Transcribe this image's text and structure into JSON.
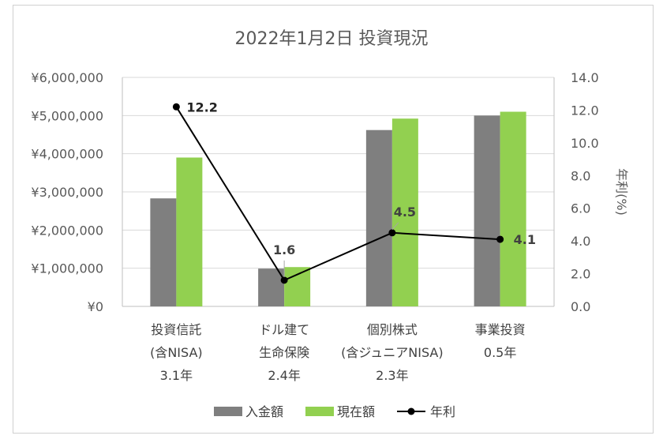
{
  "chart_data": {
    "type": "bar+line",
    "title": "2022年1月2日 投資現況",
    "categories": [
      [
        "投資信託",
        "(含NISA)",
        "3.1年"
      ],
      [
        "ドル建て",
        "生命保険",
        "2.4年"
      ],
      [
        "個別株式",
        "(含ジュニアNISA)",
        "2.3年"
      ],
      [
        "事業投資",
        "0.5年"
      ]
    ],
    "series": [
      {
        "name": "入金額",
        "type": "bar",
        "axis": "left",
        "color": "#7f7f7f",
        "values": [
          2830000,
          990000,
          4620000,
          5000000
        ]
      },
      {
        "name": "現在額",
        "type": "bar",
        "axis": "left",
        "color": "#92d050",
        "values": [
          3900000,
          1030000,
          4920000,
          5100000
        ]
      },
      {
        "name": "年利",
        "type": "line",
        "axis": "right",
        "color": "#000000",
        "values": [
          12.2,
          1.6,
          4.5,
          4.1
        ],
        "labels": [
          "12.2",
          "1.6",
          "4.5",
          "4.1"
        ]
      }
    ],
    "yaxis_left": {
      "min": 0,
      "max": 6000000,
      "step": 1000000,
      "ticks": [
        "¥0",
        "¥1,000,000",
        "¥2,000,000",
        "¥3,000,000",
        "¥4,000,000",
        "¥5,000,000",
        "¥6,000,000"
      ]
    },
    "yaxis_right": {
      "min": 0,
      "max": 14,
      "step": 2,
      "label": "年利(%)",
      "ticks": [
        "0.0",
        "2.0",
        "4.0",
        "6.0",
        "8.0",
        "10.0",
        "12.0",
        "14.0"
      ]
    },
    "legend": {
      "position": "bottom",
      "items": [
        "入金額",
        "現在額",
        "年利"
      ]
    }
  }
}
